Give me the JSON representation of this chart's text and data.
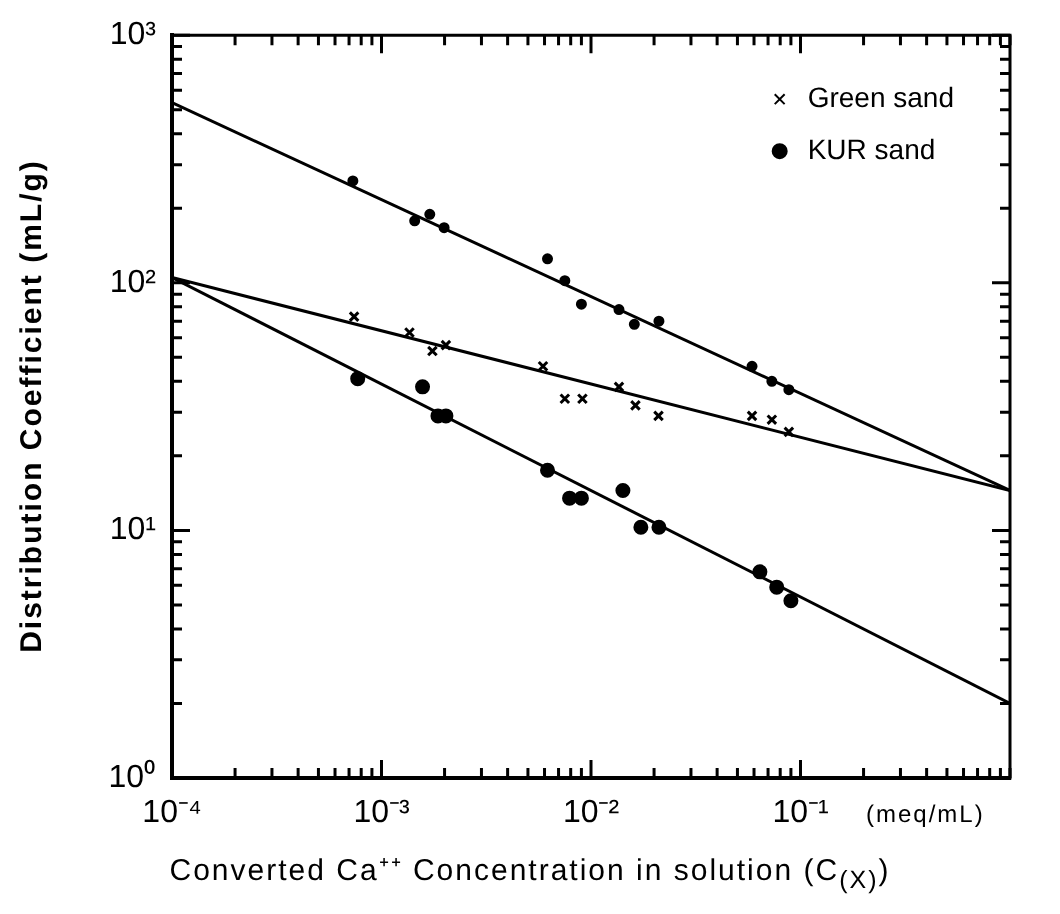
{
  "chart_data": {
    "type": "scatter",
    "xlabel": "Converted Ca⁺⁺ Concentration in solution (C$_{(X)}$)",
    "ylabel": "Distribution Coefficient (mL/g)",
    "annotations": [
      "(meq/mL)"
    ],
    "log": "xy",
    "grid": false,
    "legend": "top right",
    "xlim": [
      0.0001,
      1
    ],
    "ylim": [
      1,
      1000
    ],
    "xticks": [
      {
        "value": 0.0001,
        "label": "10⁻⁴"
      },
      {
        "value": 0.0002,
        "label": null
      },
      {
        "value": 0.0003,
        "label": null
      },
      {
        "value": 0.0004,
        "label": null
      },
      {
        "value": 0.0005,
        "label": null
      },
      {
        "value": 0.0006,
        "label": null
      },
      {
        "value": 0.0007,
        "label": null
      },
      {
        "value": 0.0008,
        "label": null
      },
      {
        "value": 0.0009,
        "label": null
      },
      {
        "value": 0.001,
        "label": "10⁻³"
      },
      {
        "value": 0.002,
        "label": null
      },
      {
        "value": 0.003,
        "label": null
      },
      {
        "value": 0.004,
        "label": null
      },
      {
        "value": 0.005,
        "label": null
      },
      {
        "value": 0.006,
        "label": null
      },
      {
        "value": 0.007,
        "label": null
      },
      {
        "value": 0.008,
        "label": null
      },
      {
        "value": 0.009,
        "label": null
      },
      {
        "value": 0.01,
        "label": "10⁻²"
      },
      {
        "value": 0.02,
        "label": null
      },
      {
        "value": 0.03,
        "label": null
      },
      {
        "value": 0.04,
        "label": null
      },
      {
        "value": 0.05,
        "label": null
      },
      {
        "value": 0.06,
        "label": null
      },
      {
        "value": 0.07,
        "label": null
      },
      {
        "value": 0.08,
        "label": null
      },
      {
        "value": 0.09,
        "label": null
      },
      {
        "value": 0.1,
        "label": "10⁻¹"
      },
      {
        "value": 0.2,
        "label": null
      },
      {
        "value": 0.3,
        "label": null
      },
      {
        "value": 0.4,
        "label": null
      },
      {
        "value": 0.5,
        "label": null
      },
      {
        "value": 0.6,
        "label": null
      },
      {
        "value": 0.7,
        "label": null
      },
      {
        "value": 0.8,
        "label": null
      },
      {
        "value": 0.9,
        "label": null
      },
      {
        "value": 1,
        "label": null
      }
    ],
    "yticks": [
      {
        "value": 1,
        "label": "10⁰"
      },
      {
        "value": 2,
        "label": null
      },
      {
        "value": 3,
        "label": null
      },
      {
        "value": 4,
        "label": null
      },
      {
        "value": 5,
        "label": null
      },
      {
        "value": 6,
        "label": null
      },
      {
        "value": 7,
        "label": null
      },
      {
        "value": 8,
        "label": null
      },
      {
        "value": 9,
        "label": null
      },
      {
        "value": 10,
        "label": "10¹"
      },
      {
        "value": 20,
        "label": null
      },
      {
        "value": 30,
        "label": null
      },
      {
        "value": 40,
        "label": null
      },
      {
        "value": 50,
        "label": null
      },
      {
        "value": 60,
        "label": null
      },
      {
        "value": 70,
        "label": null
      },
      {
        "value": 80,
        "label": null
      },
      {
        "value": 90,
        "label": null
      },
      {
        "value": 100,
        "label": "10²"
      },
      {
        "value": 200,
        "label": null
      },
      {
        "value": 300,
        "label": null
      },
      {
        "value": 400,
        "label": null
      },
      {
        "value": 500,
        "label": null
      },
      {
        "value": 600,
        "label": null
      },
      {
        "value": 700,
        "label": null
      },
      {
        "value": 800,
        "label": null
      },
      {
        "value": 900,
        "label": null
      },
      {
        "value": 1000,
        "label": "10³"
      }
    ],
    "series": [
      {
        "type": "scatter",
        "marker": "circle",
        "color": "#000000",
        "x": [
          0.00073,
          0.0017,
          0.00144,
          0.00199,
          0.0062,
          0.0075,
          0.009,
          0.0136,
          0.0161,
          0.0211,
          0.0587,
          0.073,
          0.088
        ],
        "values": [
          258,
          189,
          178,
          167,
          125,
          102,
          82,
          78,
          68,
          70,
          46,
          40,
          37
        ]
      },
      {
        "type": "scatter",
        "name": "Green sand",
        "marker": "cross",
        "color": "#000000",
        "x": [
          0.00074,
          0.00136,
          0.00175,
          0.00203,
          0.0059,
          0.0075,
          0.0091,
          0.0136,
          0.0163,
          0.021,
          0.0587,
          0.073,
          0.088
        ],
        "values": [
          73,
          63,
          53,
          56,
          46,
          34,
          34,
          38,
          32,
          29,
          29,
          28,
          25
        ]
      },
      {
        "type": "scatter",
        "name": "KUR sand",
        "marker": "circle",
        "color": "#000000",
        "x": [
          0.00077,
          0.00157,
          0.00186,
          0.00203,
          0.0062,
          0.0079,
          0.009,
          0.0142,
          0.0173,
          0.0211,
          0.064,
          0.077,
          0.09
        ],
        "values": [
          41,
          38,
          29,
          29,
          17.5,
          13.5,
          13.5,
          14.5,
          10.3,
          10.3,
          6.8,
          5.9,
          5.2
        ]
      },
      {
        "type": "line",
        "marker": "none",
        "color": "#000000",
        "x": [
          0.0001,
          1
        ],
        "values": [
          534,
          14.5
        ]
      },
      {
        "type": "line",
        "marker": "none",
        "color": "#000000",
        "x": [
          0.0001,
          1
        ],
        "values": [
          105,
          14.5
        ]
      },
      {
        "type": "line",
        "marker": "none",
        "color": "#000000",
        "x": [
          0.0001,
          1
        ],
        "values": [
          105,
          2
        ]
      }
    ]
  }
}
